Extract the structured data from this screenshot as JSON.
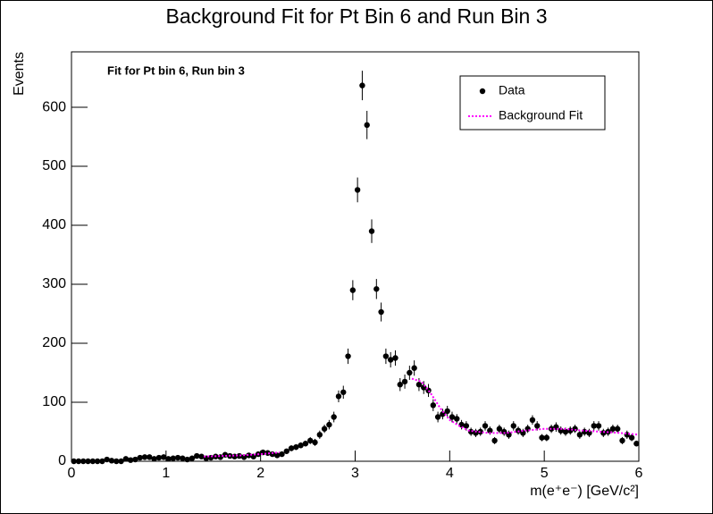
{
  "chart_data": {
    "type": "errorbar",
    "title": "Background Fit for Pt Bin 6 and Run Bin 3",
    "annotation": "Fit for Pt bin 6, Run bin 3",
    "x_label": "m(e⁺e⁻) [GeV/c²]",
    "y_label": "Events",
    "xlim": [
      0,
      6
    ],
    "xticks": [
      0,
      1,
      2,
      3,
      4,
      5,
      6
    ],
    "ylim": [
      0,
      694
    ],
    "yticks": [
      0,
      100,
      200,
      300,
      400,
      500,
      600
    ],
    "legend": "top-right",
    "series": [
      {
        "name": "Data",
        "color": "#000000",
        "x": [
          0.025,
          0.075,
          0.125,
          0.175,
          0.225,
          0.275,
          0.325,
          0.375,
          0.425,
          0.475,
          0.525,
          0.575,
          0.625,
          0.675,
          0.725,
          0.775,
          0.825,
          0.875,
          0.925,
          0.975,
          1.025,
          1.075,
          1.125,
          1.175,
          1.225,
          1.275,
          1.325,
          1.375,
          1.425,
          1.475,
          1.525,
          1.575,
          1.625,
          1.675,
          1.725,
          1.775,
          1.825,
          1.875,
          1.925,
          1.975,
          2.025,
          2.075,
          2.125,
          2.175,
          2.225,
          2.275,
          2.325,
          2.375,
          2.425,
          2.475,
          2.525,
          2.575,
          2.625,
          2.675,
          2.725,
          2.775,
          2.825,
          2.875,
          2.925,
          2.975,
          3.025,
          3.075,
          3.125,
          3.175,
          3.225,
          3.275,
          3.325,
          3.375,
          3.425,
          3.475,
          3.525,
          3.575,
          3.625,
          3.675,
          3.725,
          3.775,
          3.825,
          3.875,
          3.925,
          3.975,
          4.025,
          4.075,
          4.125,
          4.175,
          4.225,
          4.275,
          4.325,
          4.375,
          4.425,
          4.475,
          4.525,
          4.575,
          4.625,
          4.675,
          4.725,
          4.775,
          4.825,
          4.875,
          4.925,
          4.975,
          5.025,
          5.075,
          5.125,
          5.175,
          5.225,
          5.275,
          5.325,
          5.375,
          5.425,
          5.475,
          5.525,
          5.575,
          5.625,
          5.675,
          5.725,
          5.775,
          5.825,
          5.875,
          5.925,
          5.975
        ],
        "values": [
          0,
          0,
          0,
          0,
          0,
          0,
          0,
          3,
          1,
          0,
          0,
          4,
          2,
          3,
          6,
          7,
          7,
          4,
          6,
          7,
          4,
          5,
          6,
          5,
          3,
          5,
          9,
          8,
          5,
          6,
          8,
          7,
          11,
          9,
          8,
          9,
          7,
          10,
          8,
          12,
          15,
          14,
          12,
          10,
          12,
          17,
          22,
          24,
          27,
          30,
          35,
          32,
          45,
          55,
          62,
          75,
          110,
          117,
          178,
          290,
          460,
          637,
          570,
          390,
          292,
          253,
          178,
          172,
          175,
          130,
          135,
          150,
          158,
          130,
          125,
          120,
          95,
          75,
          80,
          85,
          75,
          72,
          62,
          60,
          50,
          48,
          50,
          60,
          52,
          35,
          55,
          50,
          45,
          60,
          52,
          48,
          55,
          70,
          60,
          40,
          40,
          55,
          58,
          52,
          50,
          52,
          55,
          45,
          50,
          48,
          60,
          60,
          48,
          50,
          55,
          55,
          35,
          45,
          40,
          30
        ],
        "errors": [
          0,
          0,
          0,
          0,
          0,
          0,
          0,
          2,
          1,
          0,
          0,
          2,
          1,
          2,
          2,
          3,
          3,
          2,
          2,
          3,
          2,
          2,
          2,
          2,
          2,
          2,
          3,
          3,
          2,
          2,
          3,
          3,
          3,
          3,
          3,
          3,
          3,
          3,
          3,
          3,
          4,
          4,
          3,
          3,
          3,
          4,
          5,
          5,
          5,
          5,
          6,
          6,
          7,
          7,
          8,
          9,
          10,
          11,
          13,
          17,
          21,
          25,
          24,
          20,
          17,
          16,
          13,
          13,
          13,
          11,
          12,
          12,
          13,
          11,
          11,
          11,
          10,
          9,
          9,
          9,
          9,
          8,
          8,
          8,
          7,
          7,
          7,
          8,
          7,
          6,
          7,
          7,
          7,
          8,
          7,
          7,
          7,
          8,
          8,
          6,
          6,
          7,
          8,
          7,
          7,
          7,
          7,
          7,
          7,
          7,
          8,
          8,
          7,
          7,
          7,
          7,
          6,
          7,
          6,
          5
        ]
      },
      {
        "name": "Background Fit",
        "color": "#ff00ff",
        "line_style": "dotted",
        "x": [
          1.4,
          1.6,
          1.8,
          2.0,
          2.2,
          2.9,
          3.6,
          3.7,
          3.8,
          3.9,
          4.0,
          4.1,
          4.2,
          4.4,
          4.6,
          4.8,
          5.0,
          5.2,
          5.4,
          5.6,
          5.8,
          6.0
        ],
        "values": [
          8,
          9,
          10,
          12,
          15,
          null,
          140,
          135,
          115,
          90,
          70,
          60,
          52,
          48,
          48,
          52,
          55,
          55,
          52,
          50,
          48,
          45
        ]
      }
    ]
  }
}
